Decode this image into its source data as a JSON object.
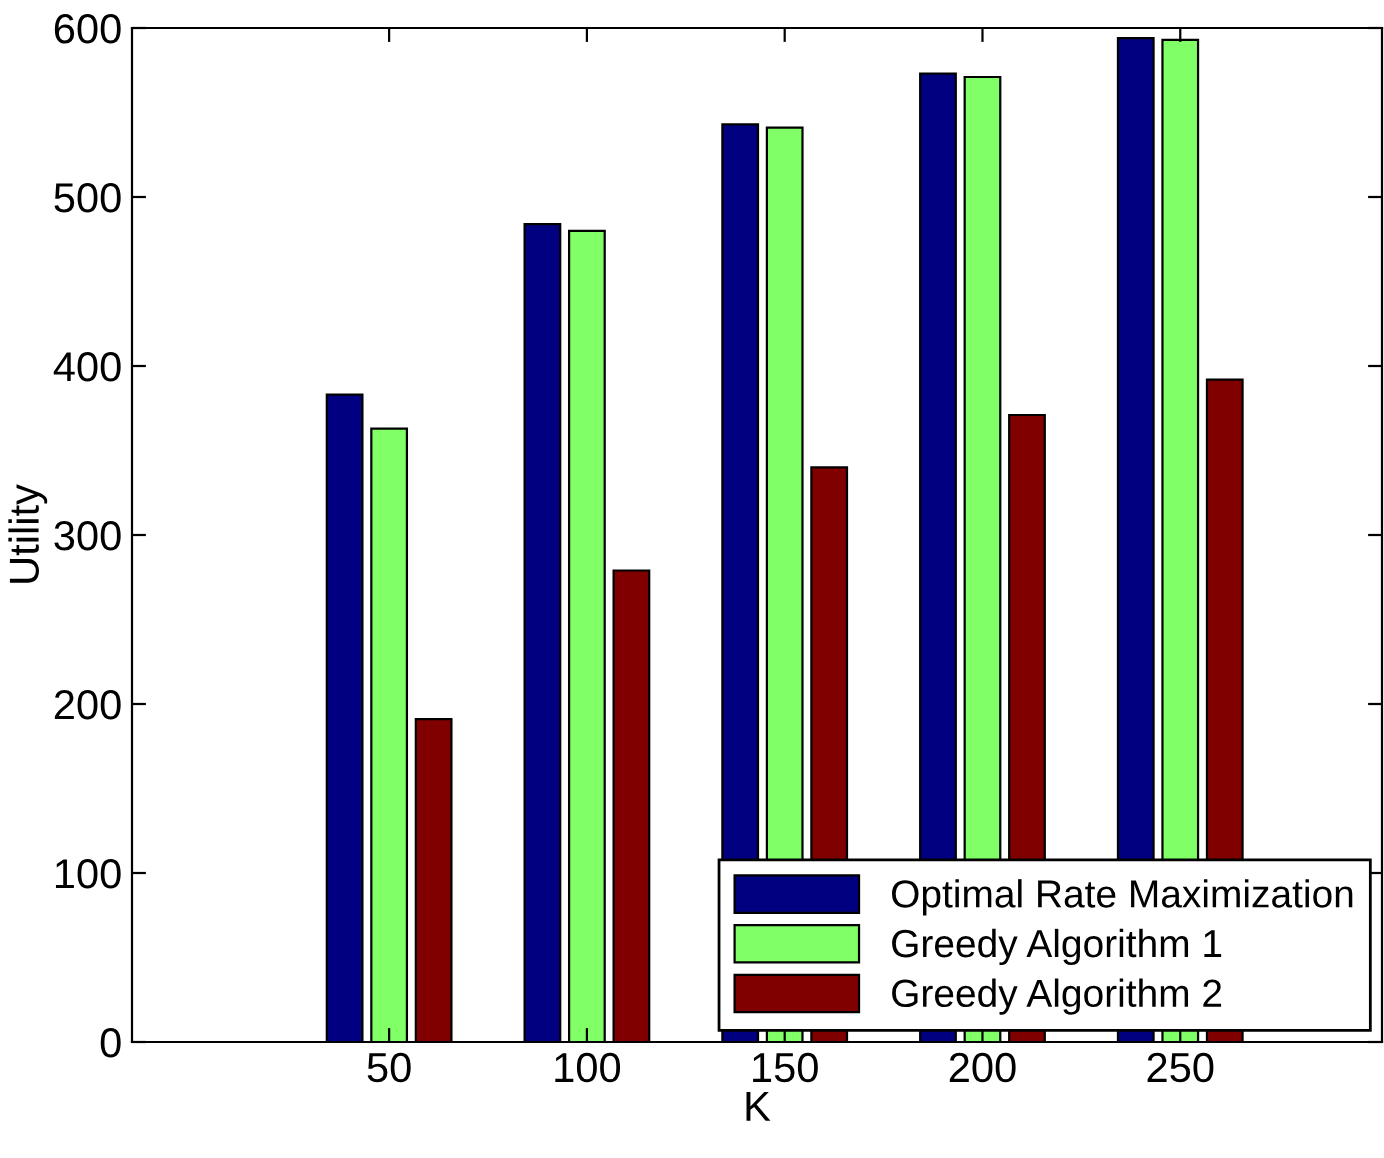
{
  "chart_data": {
    "type": "bar",
    "xlabel": "K",
    "ylabel": "Utility",
    "categories": [
      "50",
      "100",
      "150",
      "200",
      "250"
    ],
    "series": [
      {
        "name": "Optimal Rate Maximization",
        "color": "#000080",
        "values": [
          383,
          484,
          543,
          573,
          594
        ]
      },
      {
        "name": "Greedy Algorithm 1",
        "color": "#80ff66",
        "values": [
          363,
          480,
          541,
          571,
          593
        ]
      },
      {
        "name": "Greedy Algorithm 2",
        "color": "#800000",
        "values": [
          191,
          279,
          340,
          371,
          392
        ]
      }
    ],
    "ylim": [
      0,
      600
    ],
    "yticks": [
      0,
      100,
      200,
      300,
      400,
      500,
      600
    ],
    "grid": false,
    "legend": "bottom right"
  }
}
